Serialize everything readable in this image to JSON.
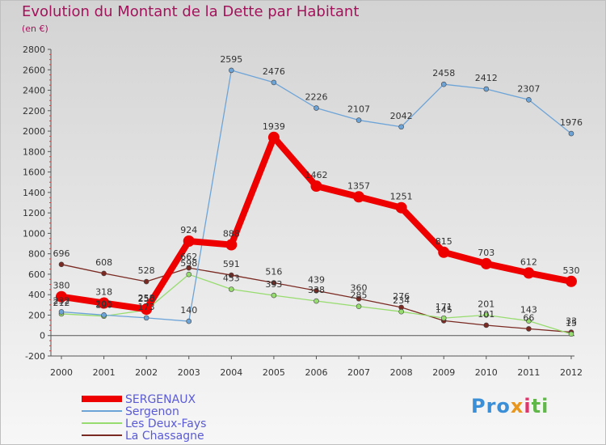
{
  "header": {
    "title": "Evolution du Montant de la Dette par Habitant",
    "unit": "(en €)"
  },
  "logo": {
    "text": "Proxiti"
  },
  "colors": {
    "title": "#a3135b",
    "legend_text": "#5a5ad6",
    "axis": "#333333"
  },
  "chart_data": {
    "type": "line",
    "x": [
      "2000",
      "2001",
      "2002",
      "2003",
      "2004",
      "2005",
      "2006",
      "2007",
      "2008",
      "2009",
      "2010",
      "2011",
      "2012"
    ],
    "ylim": [
      -200,
      2800
    ],
    "yticks": [
      -200,
      0,
      200,
      400,
      600,
      800,
      1000,
      1200,
      1400,
      1600,
      1800,
      2000,
      2200,
      2400,
      2600,
      2800
    ],
    "grid": false,
    "legend_position": "bottom-left",
    "series": [
      {
        "name": "SERGENAUX",
        "color": "#ee0000",
        "values": [
          380,
          318,
          258,
          924,
          888,
          1939,
          1462,
          1357,
          1251,
          815,
          703,
          612,
          530
        ]
      },
      {
        "name": "Sergenon",
        "color": "#6da4d8",
        "values": [
          232,
          201,
          173,
          140,
          2595,
          2476,
          2226,
          2107,
          2042,
          2458,
          2412,
          2307,
          1976
        ]
      },
      {
        "name": "Les Deux-Fays",
        "color": "#97dc6e",
        "values": [
          212,
          190,
          250,
          598,
          453,
          393,
          338,
          285,
          234,
          171,
          201,
          143,
          15
        ]
      },
      {
        "name": "La Chassagne",
        "color": "#7a2a22",
        "values": [
          696,
          608,
          528,
          662,
          591,
          516,
          439,
          360,
          276,
          145,
          101,
          66,
          33
        ]
      }
    ]
  }
}
